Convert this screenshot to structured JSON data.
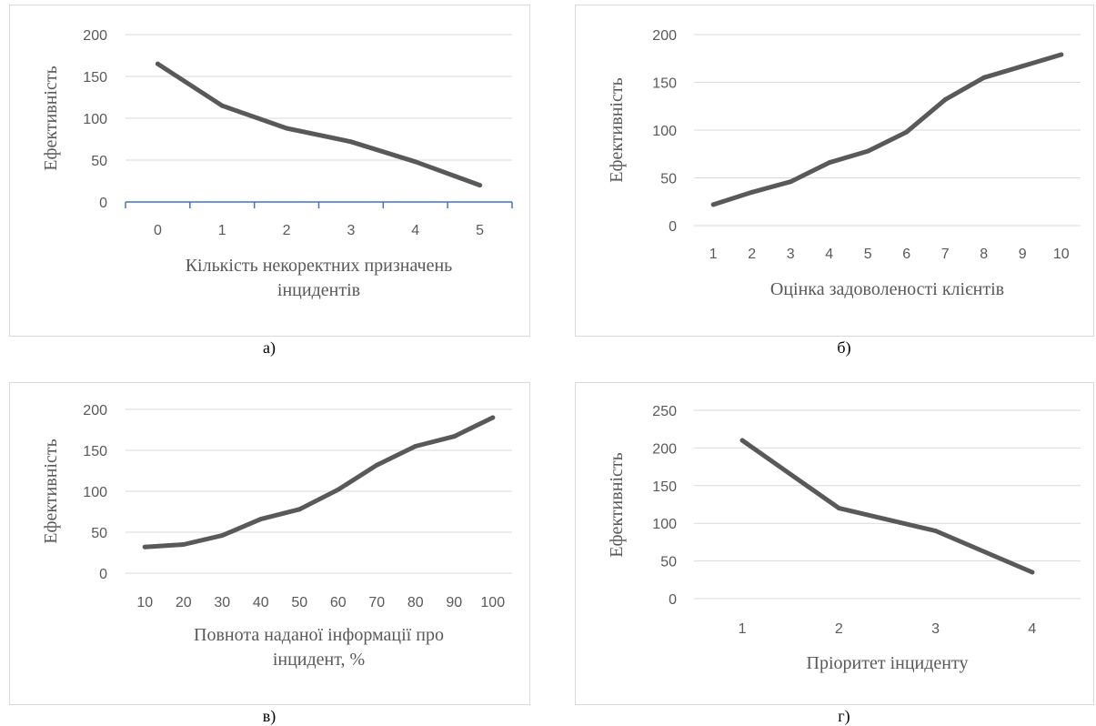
{
  "chart_data": [
    {
      "type": "line",
      "x": [
        0,
        1,
        2,
        3,
        4,
        5
      ],
      "values": [
        165,
        115,
        88,
        72,
        48,
        20
      ],
      "ylabel": "Ефективність",
      "xlabel_lines": [
        "Кількість некоректних призначень",
        "інцидентів"
      ],
      "ylim": [
        0,
        200
      ],
      "yticks": [
        0,
        50,
        100,
        150,
        200
      ],
      "grid": true,
      "x_axis_style": "blue-with-ticks",
      "caption": "а)"
    },
    {
      "type": "line",
      "x": [
        1,
        2,
        3,
        4,
        5,
        6,
        7,
        8,
        9,
        10
      ],
      "values": [
        22,
        35,
        46,
        66,
        78,
        98,
        132,
        155,
        167,
        179
      ],
      "ylabel": "Ефективність",
      "xlabel_lines": [
        "Оцінка задоволеності клієнтів"
      ],
      "ylim": [
        0,
        200
      ],
      "yticks": [
        0,
        50,
        100,
        150,
        200
      ],
      "grid": true,
      "x_axis_style": "plain",
      "caption": "б)"
    },
    {
      "type": "line",
      "x": [
        10,
        20,
        30,
        40,
        50,
        60,
        70,
        80,
        90,
        100
      ],
      "values": [
        32,
        35,
        46,
        66,
        78,
        102,
        132,
        155,
        167,
        190
      ],
      "ylabel": "Ефективність",
      "xlabel_lines": [
        "Повнота наданої інформації про",
        "інцидент, %"
      ],
      "ylim": [
        0,
        200
      ],
      "yticks": [
        0,
        50,
        100,
        150,
        200
      ],
      "grid": true,
      "x_axis_style": "plain",
      "caption": "в)"
    },
    {
      "type": "line",
      "x": [
        1,
        2,
        3,
        4
      ],
      "values": [
        210,
        120,
        90,
        35
      ],
      "ylabel": "Ефективність",
      "xlabel_lines": [
        "Пріоритет інциденту"
      ],
      "ylim": [
        0,
        250
      ],
      "yticks": [
        0,
        50,
        100,
        150,
        200,
        250
      ],
      "grid": true,
      "x_axis_style": "plain",
      "caption": "г)"
    }
  ],
  "colors": {
    "line": "#595959",
    "grid": "#d9d9d9",
    "axis_blue": "#4472c4",
    "text": "#595959",
    "frame": "#d9d9d9"
  }
}
